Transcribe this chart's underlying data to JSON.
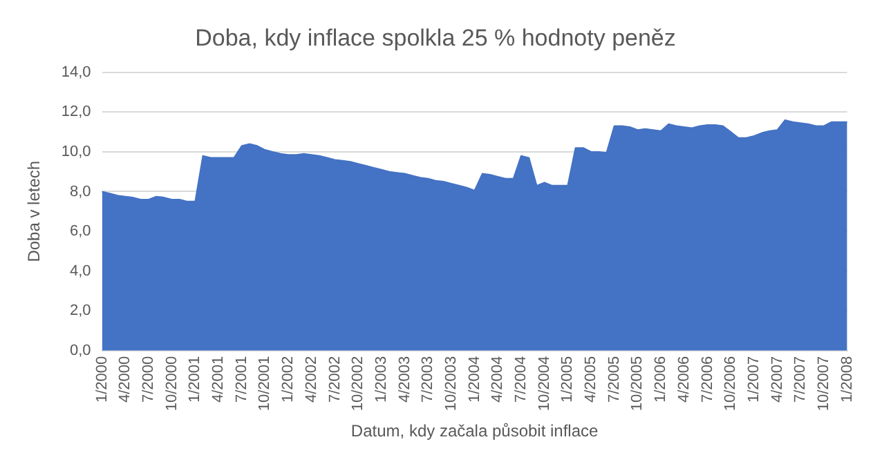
{
  "chart_data": {
    "type": "area",
    "title": "Doba, kdy inflace spolkla 25 % hodnoty peněz",
    "xlabel": "Datum, kdy začala působit inflace",
    "ylabel": "Doba v letech",
    "categories": [
      "1/2000",
      null,
      null,
      "4/2000",
      null,
      null,
      "7/2000",
      null,
      null,
      "10/2000",
      null,
      null,
      "1/2001",
      null,
      null,
      "4/2001",
      null,
      null,
      "7/2001",
      null,
      null,
      "10/2001",
      null,
      null,
      "1/2002",
      null,
      null,
      "4/2002",
      null,
      null,
      "7/2002",
      null,
      null,
      "10/2002",
      null,
      null,
      "1/2003",
      null,
      null,
      "4/2003",
      null,
      null,
      "7/2003",
      null,
      null,
      "10/2003",
      null,
      null,
      "1/2004",
      null,
      null,
      "4/2004",
      null,
      null,
      "7/2004",
      null,
      null,
      "10/2004",
      null,
      null,
      "1/2005",
      null,
      null,
      "4/2005",
      null,
      null,
      "7/2005",
      null,
      null,
      "10/2005",
      null,
      null,
      "1/2006",
      null,
      null,
      "4/2006",
      null,
      null,
      "7/2006",
      null,
      null,
      "10/2006",
      null,
      null,
      "1/2007",
      null,
      null,
      "4/2007",
      null,
      null,
      "7/2007",
      null,
      null,
      "10/2007",
      null,
      null,
      "1/2008"
    ],
    "series": [
      {
        "color": "#4472c4",
        "values": [
          8.0,
          7.9,
          7.8,
          7.75,
          7.7,
          7.6,
          7.6,
          7.75,
          7.7,
          7.6,
          7.6,
          7.5,
          7.5,
          9.8,
          9.7,
          9.7,
          9.7,
          9.7,
          10.3,
          10.4,
          10.3,
          10.1,
          10.0,
          9.9,
          9.85,
          9.85,
          9.9,
          9.85,
          9.8,
          9.7,
          9.6,
          9.55,
          9.5,
          9.4,
          9.3,
          9.2,
          9.1,
          9.0,
          8.95,
          8.9,
          8.8,
          8.7,
          8.65,
          8.55,
          8.5,
          8.4,
          8.3,
          8.2,
          8.05,
          8.9,
          8.85,
          8.75,
          8.65,
          8.65,
          9.8,
          9.7,
          8.3,
          8.45,
          8.3,
          8.3,
          8.3,
          10.2,
          10.2,
          10.0,
          10.0,
          9.95,
          11.3,
          11.3,
          11.25,
          11.1,
          11.15,
          11.1,
          11.05,
          11.4,
          11.3,
          11.25,
          11.2,
          11.3,
          11.35,
          11.35,
          11.3,
          11.0,
          10.7,
          10.7,
          10.8,
          10.95,
          11.05,
          11.1,
          11.6,
          11.5,
          11.45,
          11.4,
          11.3,
          11.3,
          11.5,
          11.5,
          11.5
        ]
      }
    ],
    "ylim": [
      0,
      14
    ],
    "yticks": [
      {
        "value": 0,
        "label": "0,0"
      },
      {
        "value": 2,
        "label": "2,0"
      },
      {
        "value": 4,
        "label": "4,0"
      },
      {
        "value": 6,
        "label": "6,0"
      },
      {
        "value": 8,
        "label": "8,0"
      },
      {
        "value": 10,
        "label": "10,0"
      },
      {
        "value": 12,
        "label": "12,0"
      },
      {
        "value": 14,
        "label": "14,0"
      }
    ],
    "grid": "y",
    "legend": false
  }
}
